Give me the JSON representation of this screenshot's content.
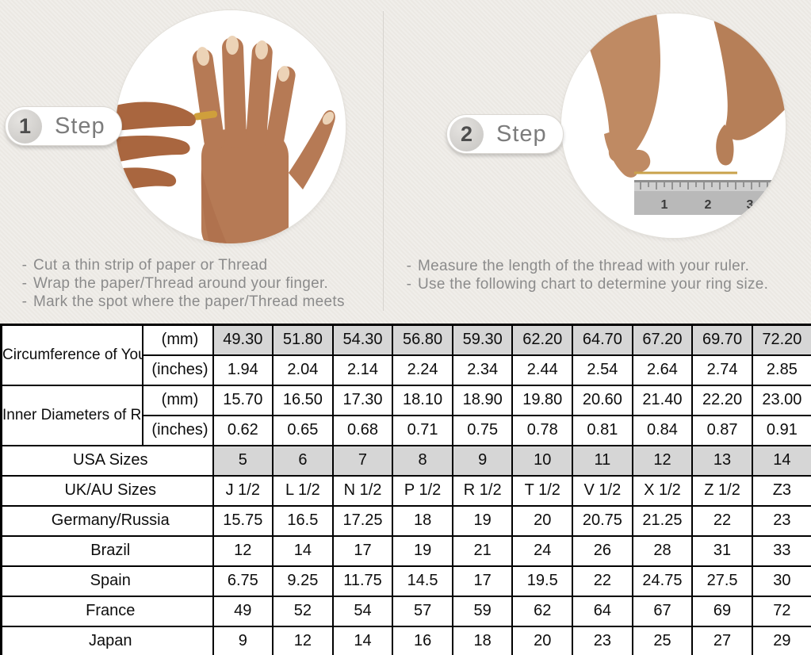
{
  "ui": {
    "bullet": "-"
  },
  "colors": {
    "background": "#ebe8e3",
    "table_shaded_cell": "#d6d6d6",
    "instruction_text": "#8b8b8b",
    "gold_thread": "#c9a24b",
    "table_border": "#000000"
  },
  "steps": [
    {
      "number": "1",
      "label": "Step",
      "instructions": [
        "Cut a thin strip of paper or Thread",
        "Wrap the paper/Thread around your finger.",
        "Mark the spot where the paper/Thread meets"
      ]
    },
    {
      "number": "2",
      "label": "Step",
      "instructions": [
        "Measure the length of the thread with your ruler.",
        "Use the following chart to determine your ring size."
      ]
    }
  ],
  "images": {
    "step1_photo_alt": "hand-with-thread-wrapped-around-finger",
    "step2_photo_alt": "hands-measuring-thread-with-ruler",
    "ruler_numbers": [
      "1",
      "2",
      "3"
    ]
  },
  "table": {
    "measure_groups": [
      {
        "label": "Circumference of Your Finger",
        "rows": [
          {
            "unit": "(mm)",
            "shaded": true,
            "values": [
              "49.30",
              "51.80",
              "54.30",
              "56.80",
              "59.30",
              "62.20",
              "64.70",
              "67.20",
              "69.70",
              "72.20"
            ]
          },
          {
            "unit": "(inches)",
            "shaded": false,
            "values": [
              "1.94",
              "2.04",
              "2.14",
              "2.24",
              "2.34",
              "2.44",
              "2.54",
              "2.64",
              "2.74",
              "2.85"
            ]
          }
        ]
      },
      {
        "label": "Inner Diameters of Rings",
        "rows": [
          {
            "unit": "(mm)",
            "shaded": false,
            "values": [
              "15.70",
              "16.50",
              "17.30",
              "18.10",
              "18.90",
              "19.80",
              "20.60",
              "21.40",
              "22.20",
              "23.00"
            ]
          },
          {
            "unit": "(inches)",
            "shaded": false,
            "values": [
              "0.62",
              "0.65",
              "0.68",
              "0.71",
              "0.75",
              "0.78",
              "0.81",
              "0.84",
              "0.87",
              "0.91"
            ]
          }
        ]
      }
    ],
    "size_rows": [
      {
        "label": "USA Sizes",
        "shaded": true,
        "values": [
          "5",
          "6",
          "7",
          "8",
          "9",
          "10",
          "11",
          "12",
          "13",
          "14"
        ]
      },
      {
        "label": "UK/AU Sizes",
        "shaded": false,
        "values": [
          "J 1/2",
          "L 1/2",
          "N 1/2",
          "P 1/2",
          "R 1/2",
          "T 1/2",
          "V 1/2",
          "X 1/2",
          "Z 1/2",
          "Z3"
        ]
      },
      {
        "label": "Germany/Russia",
        "shaded": false,
        "values": [
          "15.75",
          "16.5",
          "17.25",
          "18",
          "19",
          "20",
          "20.75",
          "21.25",
          "22",
          "23"
        ]
      },
      {
        "label": "Brazil",
        "shaded": false,
        "values": [
          "12",
          "14",
          "17",
          "19",
          "21",
          "24",
          "26",
          "28",
          "31",
          "33"
        ]
      },
      {
        "label": "Spain",
        "shaded": false,
        "values": [
          "6.75",
          "9.25",
          "11.75",
          "14.5",
          "17",
          "19.5",
          "22",
          "24.75",
          "27.5",
          "30"
        ]
      },
      {
        "label": "France",
        "shaded": false,
        "values": [
          "49",
          "52",
          "54",
          "57",
          "59",
          "62",
          "64",
          "67",
          "69",
          "72"
        ]
      },
      {
        "label": "Japan",
        "shaded": false,
        "values": [
          "9",
          "12",
          "14",
          "16",
          "18",
          "20",
          "23",
          "25",
          "27",
          "29"
        ]
      }
    ]
  }
}
